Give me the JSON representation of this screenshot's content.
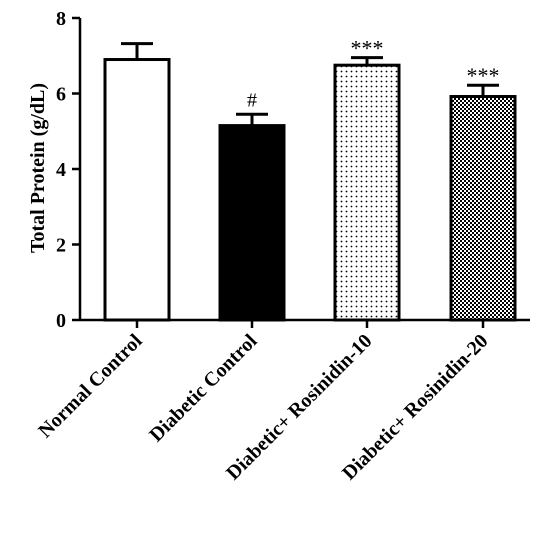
{
  "chart_data": {
    "type": "bar",
    "title": "",
    "xlabel": "",
    "ylabel": "Total Protein (g/dL)",
    "ylim": [
      0,
      8
    ],
    "yticks": [
      0,
      2,
      4,
      6,
      8
    ],
    "grid": false,
    "categories": [
      "Normal Control",
      "Diabetic Control",
      "Diabetic+ Rosinidin-10",
      "Diabetic+ Rosinidin-20"
    ],
    "values": [
      6.9,
      5.15,
      6.75,
      5.92
    ],
    "errors": [
      0.42,
      0.3,
      0.2,
      0.3
    ],
    "annotations": [
      "",
      "#",
      "***",
      "***"
    ],
    "fills": [
      "white",
      "black",
      "sparse-dots",
      "dense-checker"
    ]
  }
}
